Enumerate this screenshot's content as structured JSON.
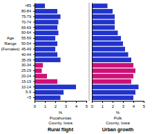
{
  "chart_data": [
    {
      "type": "bar",
      "orientation": "horizontal",
      "title": "Rural flight",
      "xlabel": "%",
      "ylabel": [
        "Age",
        "Range",
        "(Females)"
      ],
      "annotations": [
        "Pocahontas",
        "County, Iowa"
      ],
      "categories": [
        "<5",
        "5-9",
        "10-14",
        "15-19",
        "20-24",
        "25-29",
        "30-34",
        "35-39",
        "40-44",
        "45-49",
        "50-54",
        "55-59",
        "60-64",
        "65-69",
        "70-74",
        "75-79",
        "80-84",
        ">85"
      ],
      "values": [
        2.5,
        2.8,
        4.0,
        2.2,
        1.2,
        0.7,
        0.8,
        2.5,
        2.2,
        2.0,
        2.2,
        2.0,
        2.3,
        2.2,
        2.3,
        2.5,
        2.2,
        1.0
      ],
      "colors": [
        "#2233cc",
        "#2233cc",
        "#2233cc",
        "#cc1177",
        "#cc1177",
        "#cc1177",
        "#cc1177",
        "#2233cc",
        "#2233cc",
        "#2233cc",
        "#2233cc",
        "#2233cc",
        "#2233cc",
        "#2233cc",
        "#2233cc",
        "#2233cc",
        "#2233cc",
        "#2233cc"
      ],
      "xlim": [
        0,
        5
      ],
      "xticks": [
        0,
        1,
        2,
        3,
        4,
        5
      ]
    },
    {
      "type": "bar",
      "orientation": "horizontal",
      "title": "Urban growth",
      "xlabel": "%",
      "annotations": [
        "Polk",
        "County, Iowa"
      ],
      "categories": [
        "<5",
        "5-9",
        "10-14",
        "15-19",
        "20-24",
        "25-29",
        "30-34",
        "35-39",
        "40-44",
        "45-49",
        "50-54",
        "55-59",
        "60-64",
        "65-69",
        "70-74",
        "75-79",
        "80-84",
        ">85"
      ],
      "values": [
        4.0,
        4.2,
        4.5,
        3.8,
        4.0,
        4.2,
        4.0,
        3.8,
        3.5,
        3.2,
        3.0,
        2.8,
        2.5,
        2.2,
        2.2,
        2.2,
        2.0,
        1.5
      ],
      "colors": [
        "#2233cc",
        "#2233cc",
        "#2233cc",
        "#cc1177",
        "#cc1177",
        "#cc1177",
        "#cc1177",
        "#2233cc",
        "#2233cc",
        "#2233cc",
        "#2233cc",
        "#2233cc",
        "#2233cc",
        "#2233cc",
        "#2233cc",
        "#2233cc",
        "#2233cc",
        "#2233cc"
      ],
      "xlim": [
        0,
        5
      ],
      "xticks": [
        0,
        1,
        2,
        3,
        4,
        5
      ],
      "tick_labels": "x"
    }
  ]
}
